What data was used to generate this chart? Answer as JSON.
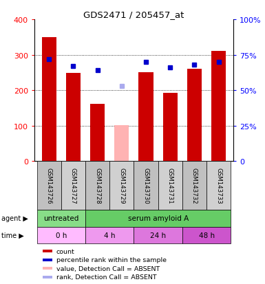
{
  "title": "GDS2471 / 205457_at",
  "samples": [
    "GSM143726",
    "GSM143727",
    "GSM143728",
    "GSM143729",
    "GSM143730",
    "GSM143731",
    "GSM143732",
    "GSM143733"
  ],
  "bar_values": [
    350,
    248,
    162,
    102,
    250,
    192,
    260,
    310
  ],
  "bar_colors": [
    "#cc0000",
    "#cc0000",
    "#cc0000",
    "#ffb3b3",
    "#cc0000",
    "#cc0000",
    "#cc0000",
    "#cc0000"
  ],
  "rank_pct": [
    72,
    67,
    64,
    53,
    70,
    66,
    68,
    70
  ],
  "rank_colors": [
    "#0000cc",
    "#0000cc",
    "#0000cc",
    "#aaaaee",
    "#0000cc",
    "#0000cc",
    "#0000cc",
    "#0000cc"
  ],
  "ylim_left": [
    0,
    400
  ],
  "ylim_right": [
    0,
    100
  ],
  "yticks_left": [
    0,
    100,
    200,
    300,
    400
  ],
  "yticks_right": [
    0,
    25,
    50,
    75,
    100
  ],
  "agent_labels": [
    {
      "text": "untreated",
      "start": 0,
      "end": 2,
      "color": "#88dd88"
    },
    {
      "text": "serum amyloid A",
      "start": 2,
      "end": 8,
      "color": "#66cc66"
    }
  ],
  "time_labels": [
    {
      "text": "0 h",
      "start": 0,
      "end": 2,
      "color": "#ffbbff"
    },
    {
      "text": "4 h",
      "start": 2,
      "end": 4,
      "color": "#ee99ee"
    },
    {
      "text": "24 h",
      "start": 4,
      "end": 6,
      "color": "#dd77dd"
    },
    {
      "text": "48 h",
      "start": 6,
      "end": 8,
      "color": "#cc55cc"
    }
  ],
  "legend_items": [
    {
      "label": "count",
      "color": "#cc0000"
    },
    {
      "label": "percentile rank within the sample",
      "color": "#0000cc"
    },
    {
      "label": "value, Detection Call = ABSENT",
      "color": "#ffb3b3"
    },
    {
      "label": "rank, Detection Call = ABSENT",
      "color": "#aaaaee"
    }
  ]
}
